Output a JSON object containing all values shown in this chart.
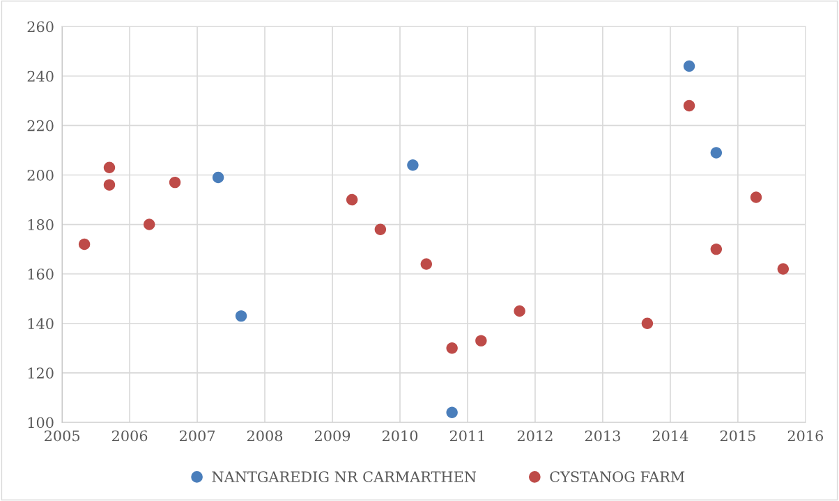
{
  "chart_data": {
    "type": "scatter",
    "series": [
      {
        "name": "NANTGAREDIG NR CARMARTHEN",
        "color": "#4a7ebb",
        "x": [
          2007.31,
          2007.65,
          2010.19,
          2010.77,
          2014.28,
          2014.68
        ],
        "values": [
          199,
          143,
          204,
          104,
          244,
          209
        ]
      },
      {
        "name": "CYSTANOG FARM",
        "color": "#be4b48",
        "x": [
          2005.33,
          2005.7,
          2005.7,
          2006.29,
          2006.67,
          2009.29,
          2009.71,
          2010.39,
          2010.77,
          2011.2,
          2011.77,
          2013.66,
          2014.28,
          2014.68,
          2015.27,
          2015.67
        ],
        "values": [
          172,
          203,
          196,
          180,
          197,
          190,
          178,
          164,
          130,
          133,
          145,
          140,
          228,
          170,
          191,
          162
        ]
      }
    ],
    "xlim": [
      2005,
      2016
    ],
    "xticks": [
      2005,
      2006,
      2007,
      2008,
      2009,
      2010,
      2011,
      2012,
      2013,
      2014,
      2015,
      2016
    ],
    "ylim": [
      100,
      260
    ],
    "yticks": [
      100,
      120,
      140,
      160,
      180,
      200,
      220,
      240,
      260
    ],
    "grid": true,
    "legend": "bottom",
    "marker": "circle"
  }
}
